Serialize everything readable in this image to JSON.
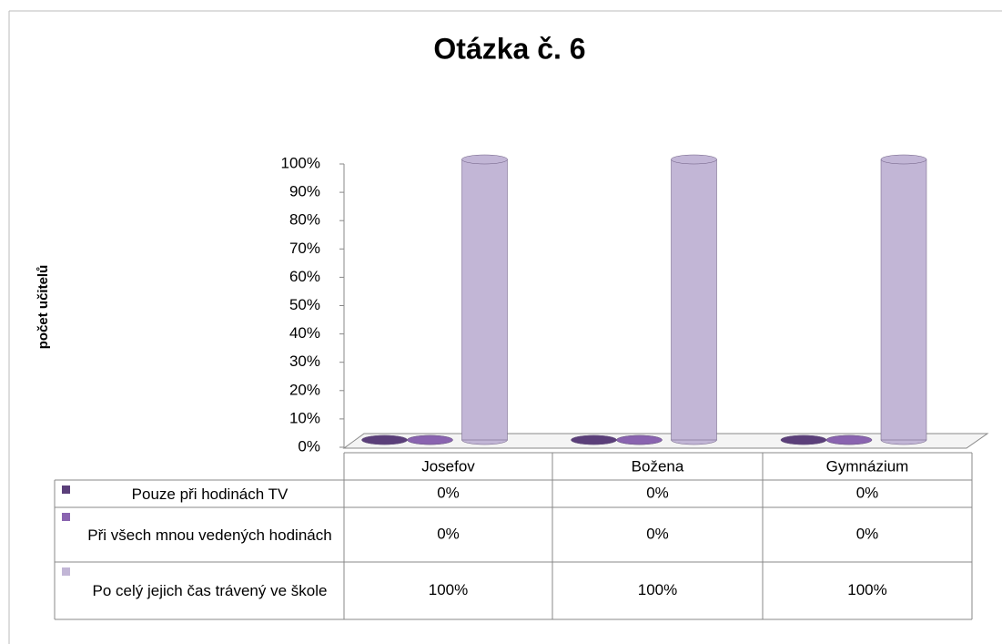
{
  "chart_data": {
    "type": "bar3d",
    "title": "Otázka č. 6",
    "y_label": "počet učitelů",
    "categories": [
      "Josefov",
      "Božena",
      "Gymnázium"
    ],
    "series": [
      {
        "name": "Pouze při hodinách TV",
        "color": "#5b3f7a",
        "values": [
          0,
          0,
          0
        ],
        "value_labels": [
          "0%",
          "0%",
          "0%"
        ]
      },
      {
        "name": "Při všech mnou vedených hodinách",
        "color": "#8a64b0",
        "values": [
          0,
          0,
          0
        ],
        "value_labels": [
          "0%",
          "0%",
          "0%"
        ]
      },
      {
        "name": "Po celý jejich čas trávený ve škole",
        "color": "#c2b6d6",
        "values": [
          100,
          100,
          100
        ],
        "value_labels": [
          "100%",
          "100%",
          "100%"
        ]
      }
    ],
    "ylim": [
      0,
      100
    ],
    "yticks": [
      {
        "value": 0,
        "label": "0%"
      },
      {
        "value": 10,
        "label": "10%"
      },
      {
        "value": 20,
        "label": "20%"
      },
      {
        "value": 30,
        "label": "30%"
      },
      {
        "value": 40,
        "label": "40%"
      },
      {
        "value": 50,
        "label": "50%"
      },
      {
        "value": 60,
        "label": "60%"
      },
      {
        "value": 70,
        "label": "70%"
      },
      {
        "value": 80,
        "label": "80%"
      },
      {
        "value": 90,
        "label": "90%"
      },
      {
        "value": 100,
        "label": "100%"
      }
    ]
  }
}
